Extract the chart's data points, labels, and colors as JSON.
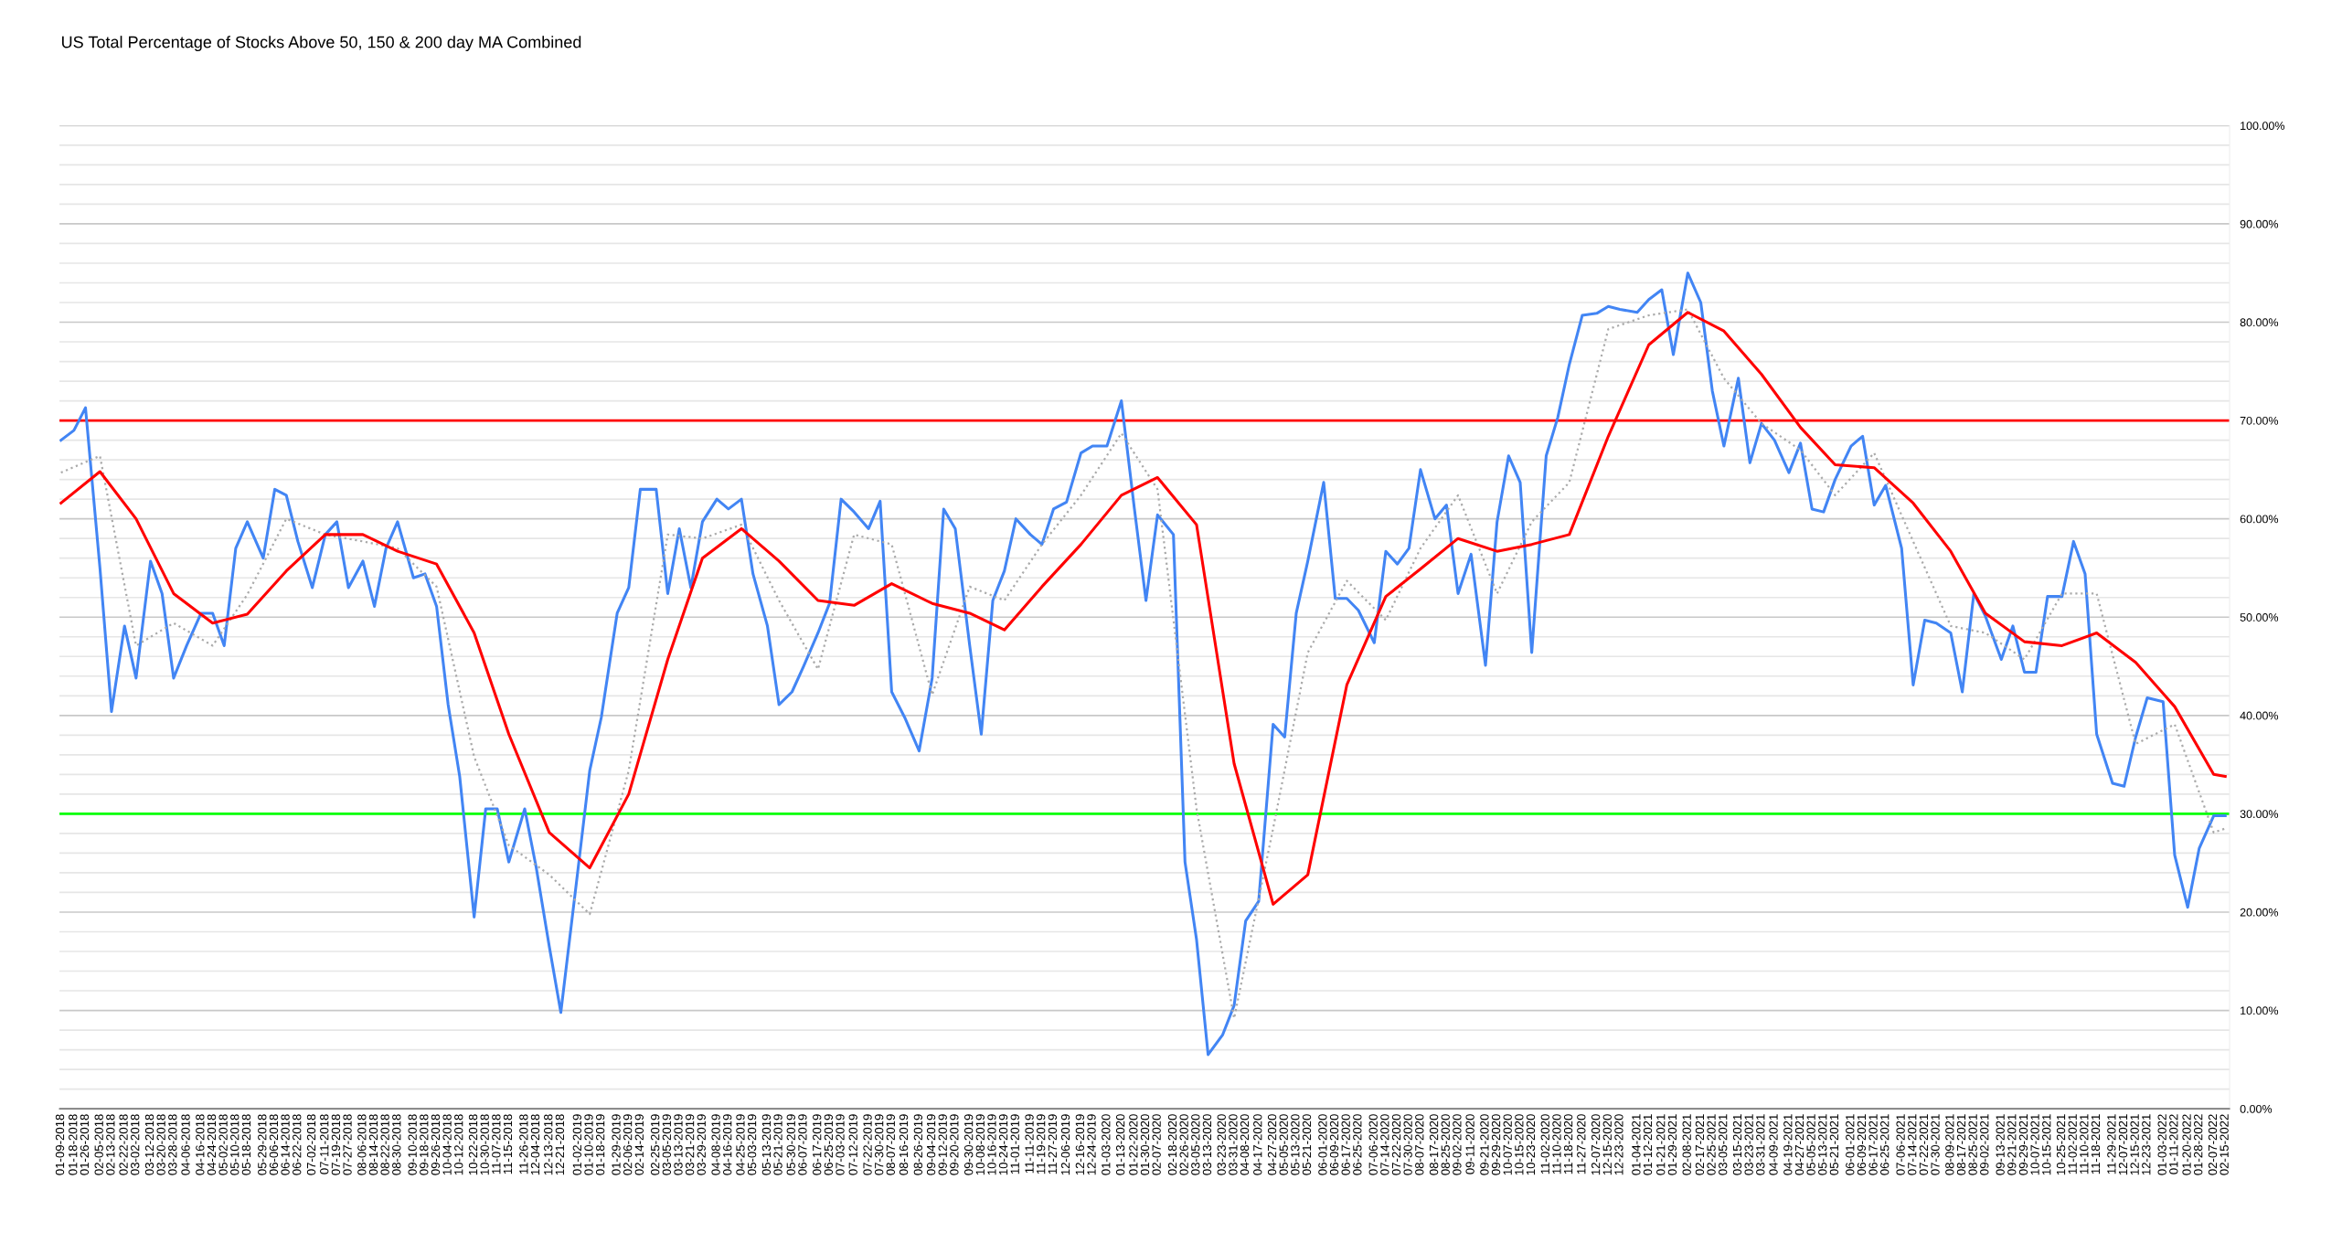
{
  "chart_data": {
    "type": "line",
    "title": "US Total Percentage of Stocks Above 50, 150 & 200 day MA Combined",
    "x": [
      "2018-01-09",
      "2018-01-18",
      "2018-01-26",
      "2018-02-05",
      "2018-02-13",
      "2018-02-22",
      "2018-03-02",
      "2018-03-12",
      "2018-03-20",
      "2018-03-28",
      "2018-04-06",
      "2018-04-16",
      "2018-04-24",
      "2018-05-02",
      "2018-05-10",
      "2018-05-18",
      "2018-05-29",
      "2018-06-06",
      "2018-06-14",
      "2018-06-22",
      "2018-07-02",
      "2018-07-11",
      "2018-07-19",
      "2018-07-27",
      "2018-08-06",
      "2018-08-14",
      "2018-08-22",
      "2018-08-30",
      "2018-09-10",
      "2018-09-18",
      "2018-09-26",
      "2018-10-04",
      "2018-10-12",
      "2018-10-22",
      "2018-10-30",
      "2018-11-07",
      "2018-11-15",
      "2018-11-26",
      "2018-12-04",
      "2018-12-13",
      "2018-12-21",
      "2019-01-02",
      "2019-01-10",
      "2019-01-18",
      "2019-01-29",
      "2019-02-06",
      "2019-02-14",
      "2019-02-25",
      "2019-03-05",
      "2019-03-13",
      "2019-03-21",
      "2019-03-29",
      "2019-04-08",
      "2019-04-16",
      "2019-04-25",
      "2019-05-03",
      "2019-05-13",
      "2019-05-21",
      "2019-05-30",
      "2019-06-07",
      "2019-06-17",
      "2019-06-25",
      "2019-07-03",
      "2019-07-12",
      "2019-07-22",
      "2019-07-30",
      "2019-08-07",
      "2019-08-16",
      "2019-08-26",
      "2019-09-04",
      "2019-09-12",
      "2019-09-20",
      "2019-09-30",
      "2019-10-08",
      "2019-10-16",
      "2019-10-24",
      "2019-11-01",
      "2019-11-11",
      "2019-11-19",
      "2019-11-27",
      "2019-12-06",
      "2019-12-16",
      "2019-12-24",
      "2020-01-03",
      "2020-01-13",
      "2020-01-22",
      "2020-01-30",
      "2020-02-07",
      "2020-02-18",
      "2020-02-26",
      "2020-03-05",
      "2020-03-13",
      "2020-03-23",
      "2020-03-31",
      "2020-04-08",
      "2020-04-17",
      "2020-04-27",
      "2020-05-05",
      "2020-05-13",
      "2020-05-21",
      "2020-06-01",
      "2020-06-09",
      "2020-06-17",
      "2020-06-25",
      "2020-07-06",
      "2020-07-14",
      "2020-07-22",
      "2020-07-30",
      "2020-08-07",
      "2020-08-17",
      "2020-08-25",
      "2020-09-02",
      "2020-09-11",
      "2020-09-21",
      "2020-09-29",
      "2020-10-07",
      "2020-10-15",
      "2020-10-23",
      "2020-11-02",
      "2020-11-10",
      "2020-11-18",
      "2020-11-27",
      "2020-12-07",
      "2020-12-15",
      "2020-12-23",
      "2021-01-04",
      "2021-01-12",
      "2021-01-21",
      "2021-01-29",
      "2021-02-08",
      "2021-02-17",
      "2021-02-25",
      "2021-03-05",
      "2021-03-15",
      "2021-03-23",
      "2021-03-31",
      "2021-04-09",
      "2021-04-19",
      "2021-04-27",
      "2021-05-05",
      "2021-05-13",
      "2021-05-21",
      "2021-06-01",
      "2021-06-09",
      "2021-06-17",
      "2021-06-25",
      "2021-07-06",
      "2021-07-14",
      "2021-07-22",
      "2021-07-30",
      "2021-08-09",
      "2021-08-17",
      "2021-08-25",
      "2021-09-02",
      "2021-09-13",
      "2021-09-21",
      "2021-09-29",
      "2021-10-07",
      "2021-10-15",
      "2021-10-25",
      "2021-11-02",
      "2021-11-10",
      "2021-11-18",
      "2021-11-29",
      "2021-12-07",
      "2021-12-15",
      "2021-12-23",
      "2022-01-03",
      "2022-01-11",
      "2022-01-20",
      "2022-01-28",
      "2022-02-07",
      "2022-02-15"
    ],
    "xlim": [
      "2018-01-08",
      "2022-02-18"
    ],
    "xticks": [
      {
        "value": "2018-01-09",
        "label": "01-09-2018"
      },
      {
        "value": "2018-01-18",
        "label": "01-18-2018"
      },
      {
        "value": "2018-01-26",
        "label": "01-26-2018"
      },
      {
        "value": "2018-02-05",
        "label": "02-05-2018"
      },
      {
        "value": "2018-02-13",
        "label": "02-13-2018"
      },
      {
        "value": "2018-02-22",
        "label": "02-22-2018"
      },
      {
        "value": "2018-03-02",
        "label": "03-02-2018"
      },
      {
        "value": "2018-03-12",
        "label": "03-12-2018"
      },
      {
        "value": "2018-03-20",
        "label": "03-20-2018"
      },
      {
        "value": "2018-03-28",
        "label": "03-28-2018"
      },
      {
        "value": "2018-04-06",
        "label": "04-06-2018"
      },
      {
        "value": "2018-04-16",
        "label": "04-16-2018"
      },
      {
        "value": "2018-04-24",
        "label": "04-24-2018"
      },
      {
        "value": "2018-05-02",
        "label": "05-02-2018"
      },
      {
        "value": "2018-05-10",
        "label": "05-10-2018"
      },
      {
        "value": "2018-05-18",
        "label": "05-18-2018"
      },
      {
        "value": "2018-05-29",
        "label": "05-29-2018"
      },
      {
        "value": "2018-06-06",
        "label": "06-06-2018"
      },
      {
        "value": "2018-06-14",
        "label": "06-14-2018"
      },
      {
        "value": "2018-06-22",
        "label": "06-22-2018"
      },
      {
        "value": "2018-07-02",
        "label": "07-02-2018"
      },
      {
        "value": "2018-07-11",
        "label": "07-11-2018"
      },
      {
        "value": "2018-07-19",
        "label": "07-19-2018"
      },
      {
        "value": "2018-07-27",
        "label": "07-27-2018"
      },
      {
        "value": "2018-08-06",
        "label": "08-06-2018"
      },
      {
        "value": "2018-08-14",
        "label": "08-14-2018"
      },
      {
        "value": "2018-08-22",
        "label": "08-22-2018"
      },
      {
        "value": "2018-08-30",
        "label": "08-30-2018"
      },
      {
        "value": "2018-09-10",
        "label": "09-10-2018"
      },
      {
        "value": "2018-09-18",
        "label": "09-18-2018"
      },
      {
        "value": "2018-09-26",
        "label": "09-26-2018"
      },
      {
        "value": "2018-10-04",
        "label": "10-04-2018"
      },
      {
        "value": "2018-10-12",
        "label": "10-12-2018"
      },
      {
        "value": "2018-10-22",
        "label": "10-22-2018"
      },
      {
        "value": "2018-10-30",
        "label": "10-30-2018"
      },
      {
        "value": "2018-11-07",
        "label": "11-07-2018"
      },
      {
        "value": "2018-11-15",
        "label": "11-15-2018"
      },
      {
        "value": "2018-11-26",
        "label": "11-26-2018"
      },
      {
        "value": "2018-12-04",
        "label": "12-04-2018"
      },
      {
        "value": "2018-12-13",
        "label": "12-13-2018"
      },
      {
        "value": "2018-12-21",
        "label": "12-21-2018"
      },
      {
        "value": "2019-01-02",
        "label": "01-02-2019"
      },
      {
        "value": "2019-01-10",
        "label": "01-10-2019"
      },
      {
        "value": "2019-01-18",
        "label": "01-18-2019"
      },
      {
        "value": "2019-01-29",
        "label": "01-29-2019"
      },
      {
        "value": "2019-02-06",
        "label": "02-06-2019"
      },
      {
        "value": "2019-02-14",
        "label": "02-14-2019"
      },
      {
        "value": "2019-02-25",
        "label": "02-25-2019"
      },
      {
        "value": "2019-03-05",
        "label": "03-05-2019"
      },
      {
        "value": "2019-03-13",
        "label": "03-13-2019"
      },
      {
        "value": "2019-03-21",
        "label": "03-21-2019"
      },
      {
        "value": "2019-03-29",
        "label": "03-29-2019"
      },
      {
        "value": "2019-04-08",
        "label": "04-08-2019"
      },
      {
        "value": "2019-04-16",
        "label": "04-16-2019"
      },
      {
        "value": "2019-04-25",
        "label": "04-25-2019"
      },
      {
        "value": "2019-05-03",
        "label": "05-03-2019"
      },
      {
        "value": "2019-05-13",
        "label": "05-13-2019"
      },
      {
        "value": "2019-05-21",
        "label": "05-21-2019"
      },
      {
        "value": "2019-05-30",
        "label": "05-30-2019"
      },
      {
        "value": "2019-06-07",
        "label": "06-07-2019"
      },
      {
        "value": "2019-06-17",
        "label": "06-17-2019"
      },
      {
        "value": "2019-06-25",
        "label": "06-25-2019"
      },
      {
        "value": "2019-07-03",
        "label": "07-03-2019"
      },
      {
        "value": "2019-07-12",
        "label": "07-12-2019"
      },
      {
        "value": "2019-07-22",
        "label": "07-22-2019"
      },
      {
        "value": "2019-07-30",
        "label": "07-30-2019"
      },
      {
        "value": "2019-08-07",
        "label": "08-07-2019"
      },
      {
        "value": "2019-08-16",
        "label": "08-16-2019"
      },
      {
        "value": "2019-08-26",
        "label": "08-26-2019"
      },
      {
        "value": "2019-09-04",
        "label": "09-04-2019"
      },
      {
        "value": "2019-09-12",
        "label": "09-12-2019"
      },
      {
        "value": "2019-09-20",
        "label": "09-20-2019"
      },
      {
        "value": "2019-09-30",
        "label": "09-30-2019"
      },
      {
        "value": "2019-10-08",
        "label": "10-08-2019"
      },
      {
        "value": "2019-10-16",
        "label": "10-16-2019"
      },
      {
        "value": "2019-10-24",
        "label": "10-24-2019"
      },
      {
        "value": "2019-11-01",
        "label": "11-01-2019"
      },
      {
        "value": "2019-11-11",
        "label": "11-11-2019"
      },
      {
        "value": "2019-11-19",
        "label": "11-19-2019"
      },
      {
        "value": "2019-11-27",
        "label": "11-27-2019"
      },
      {
        "value": "2019-12-06",
        "label": "12-06-2019"
      },
      {
        "value": "2019-12-16",
        "label": "12-16-2019"
      },
      {
        "value": "2019-12-24",
        "label": "12-24-2019"
      },
      {
        "value": "2020-01-03",
        "label": "01-03-2020"
      },
      {
        "value": "2020-01-13",
        "label": "01-13-2020"
      },
      {
        "value": "2020-01-22",
        "label": "01-22-2020"
      },
      {
        "value": "2020-01-30",
        "label": "01-30-2020"
      },
      {
        "value": "2020-02-07",
        "label": "02-07-2020"
      },
      {
        "value": "2020-02-18",
        "label": "02-18-2020"
      },
      {
        "value": "2020-02-26",
        "label": "02-26-2020"
      },
      {
        "value": "2020-03-05",
        "label": "03-05-2020"
      },
      {
        "value": "2020-03-13",
        "label": "03-13-2020"
      },
      {
        "value": "2020-03-23",
        "label": "03-23-2020"
      },
      {
        "value": "2020-03-31",
        "label": "03-31-2020"
      },
      {
        "value": "2020-04-08",
        "label": "04-08-2020"
      },
      {
        "value": "2020-04-17",
        "label": "04-17-2020"
      },
      {
        "value": "2020-04-27",
        "label": "04-27-2020"
      },
      {
        "value": "2020-05-05",
        "label": "05-05-2020"
      },
      {
        "value": "2020-05-13",
        "label": "05-13-2020"
      },
      {
        "value": "2020-05-21",
        "label": "05-21-2020"
      },
      {
        "value": "2020-06-01",
        "label": "06-01-2020"
      },
      {
        "value": "2020-06-09",
        "label": "06-09-2020"
      },
      {
        "value": "2020-06-17",
        "label": "06-17-2020"
      },
      {
        "value": "2020-06-25",
        "label": "06-25-2020"
      },
      {
        "value": "2020-07-06",
        "label": "07-06-2020"
      },
      {
        "value": "2020-07-14",
        "label": "07-14-2020"
      },
      {
        "value": "2020-07-22",
        "label": "07-22-2020"
      },
      {
        "value": "2020-07-30",
        "label": "07-30-2020"
      },
      {
        "value": "2020-08-07",
        "label": "08-07-2020"
      },
      {
        "value": "2020-08-17",
        "label": "08-17-2020"
      },
      {
        "value": "2020-08-25",
        "label": "08-25-2020"
      },
      {
        "value": "2020-09-02",
        "label": "09-02-2020"
      },
      {
        "value": "2020-09-11",
        "label": "09-11-2020"
      },
      {
        "value": "2020-09-21",
        "label": "09-21-2020"
      },
      {
        "value": "2020-09-29",
        "label": "09-29-2020"
      },
      {
        "value": "2020-10-07",
        "label": "10-07-2020"
      },
      {
        "value": "2020-10-15",
        "label": "10-15-2020"
      },
      {
        "value": "2020-10-23",
        "label": "10-23-2020"
      },
      {
        "value": "2020-11-02",
        "label": "11-02-2020"
      },
      {
        "value": "2020-11-10",
        "label": "11-10-2020"
      },
      {
        "value": "2020-11-18",
        "label": "11-18-2020"
      },
      {
        "value": "2020-11-27",
        "label": "11-27-2020"
      },
      {
        "value": "2020-12-07",
        "label": "12-07-2020"
      },
      {
        "value": "2020-12-15",
        "label": "12-15-2020"
      },
      {
        "value": "2020-12-23",
        "label": "12-23-2020"
      },
      {
        "value": "2021-01-04",
        "label": "01-04-2021"
      },
      {
        "value": "2021-01-12",
        "label": "01-12-2021"
      },
      {
        "value": "2021-01-21",
        "label": "01-21-2021"
      },
      {
        "value": "2021-01-29",
        "label": "01-29-2021"
      },
      {
        "value": "2021-02-08",
        "label": "02-08-2021"
      },
      {
        "value": "2021-02-17",
        "label": "02-17-2021"
      },
      {
        "value": "2021-02-25",
        "label": "02-25-2021"
      },
      {
        "value": "2021-03-05",
        "label": "03-05-2021"
      },
      {
        "value": "2021-03-15",
        "label": "03-15-2021"
      },
      {
        "value": "2021-03-23",
        "label": "03-23-2021"
      },
      {
        "value": "2021-03-31",
        "label": "03-31-2021"
      },
      {
        "value": "2021-04-09",
        "label": "04-09-2021"
      },
      {
        "value": "2021-04-19",
        "label": "04-19-2021"
      },
      {
        "value": "2021-04-27",
        "label": "04-27-2021"
      },
      {
        "value": "2021-05-05",
        "label": "05-05-2021"
      },
      {
        "value": "2021-05-13",
        "label": "05-13-2021"
      },
      {
        "value": "2021-05-21",
        "label": "05-21-2021"
      },
      {
        "value": "2021-06-01",
        "label": "06-01-2021"
      },
      {
        "value": "2021-06-09",
        "label": "06-09-2021"
      },
      {
        "value": "2021-06-17",
        "label": "06-17-2021"
      },
      {
        "value": "2021-06-25",
        "label": "06-25-2021"
      },
      {
        "value": "2021-07-06",
        "label": "07-06-2021"
      },
      {
        "value": "2021-07-14",
        "label": "07-14-2021"
      },
      {
        "value": "2021-07-22",
        "label": "07-22-2021"
      },
      {
        "value": "2021-07-30",
        "label": "07-30-2021"
      },
      {
        "value": "2021-08-09",
        "label": "08-09-2021"
      },
      {
        "value": "2021-08-17",
        "label": "08-17-2021"
      },
      {
        "value": "2021-08-25",
        "label": "08-25-2021"
      },
      {
        "value": "2021-09-02",
        "label": "09-02-2021"
      },
      {
        "value": "2021-09-13",
        "label": "09-13-2021"
      },
      {
        "value": "2021-09-21",
        "label": "09-21-2021"
      },
      {
        "value": "2021-09-29",
        "label": "09-29-2021"
      },
      {
        "value": "2021-10-07",
        "label": "10-07-2021"
      },
      {
        "value": "2021-10-15",
        "label": "10-15-2021"
      },
      {
        "value": "2021-10-25",
        "label": "10-25-2021"
      },
      {
        "value": "2021-11-02",
        "label": "11-02-2021"
      },
      {
        "value": "2021-11-10",
        "label": "11-10-2021"
      },
      {
        "value": "2021-11-18",
        "label": "11-18-2021"
      },
      {
        "value": "2021-11-29",
        "label": "11-29-2021"
      },
      {
        "value": "2021-12-07",
        "label": "12-07-2021"
      },
      {
        "value": "2021-12-15",
        "label": "12-15-2021"
      },
      {
        "value": "2021-12-23",
        "label": "12-23-2021"
      },
      {
        "value": "2022-01-03",
        "label": "01-03-2022"
      },
      {
        "value": "2022-01-11",
        "label": "01-11-2022"
      },
      {
        "value": "2022-01-20",
        "label": "01-20-2022"
      },
      {
        "value": "2022-01-28",
        "label": "01-28-2022"
      },
      {
        "value": "2022-02-07",
        "label": "02-07-2022"
      },
      {
        "value": "2022-02-15",
        "label": "02-15-2022"
      }
    ],
    "ylim": [
      0,
      100
    ],
    "yticks": [
      {
        "value": 0,
        "label": "0.00%"
      },
      {
        "value": 2,
        "label": null
      },
      {
        "value": 4,
        "label": null
      },
      {
        "value": 6,
        "label": null
      },
      {
        "value": 8,
        "label": null
      },
      {
        "value": 10,
        "label": "10.00%"
      },
      {
        "value": 12,
        "label": null
      },
      {
        "value": 14,
        "label": null
      },
      {
        "value": 16,
        "label": null
      },
      {
        "value": 18,
        "label": null
      },
      {
        "value": 20,
        "label": "20.00%"
      },
      {
        "value": 22,
        "label": null
      },
      {
        "value": 24,
        "label": null
      },
      {
        "value": 26,
        "label": null
      },
      {
        "value": 28,
        "label": null
      },
      {
        "value": 30,
        "label": "30.00%"
      },
      {
        "value": 32,
        "label": null
      },
      {
        "value": 34,
        "label": null
      },
      {
        "value": 36,
        "label": null
      },
      {
        "value": 38,
        "label": null
      },
      {
        "value": 40,
        "label": "40.00%"
      },
      {
        "value": 42,
        "label": null
      },
      {
        "value": 44,
        "label": null
      },
      {
        "value": 46,
        "label": null
      },
      {
        "value": 48,
        "label": null
      },
      {
        "value": 50,
        "label": "50.00%"
      },
      {
        "value": 52,
        "label": null
      },
      {
        "value": 54,
        "label": null
      },
      {
        "value": 56,
        "label": null
      },
      {
        "value": 58,
        "label": null
      },
      {
        "value": 60,
        "label": "60.00%"
      },
      {
        "value": 62,
        "label": null
      },
      {
        "value": 64,
        "label": null
      },
      {
        "value": 66,
        "label": null
      },
      {
        "value": 68,
        "label": null
      },
      {
        "value": 70,
        "label": "70.00%"
      },
      {
        "value": 72,
        "label": null
      },
      {
        "value": 74,
        "label": null
      },
      {
        "value": 76,
        "label": null
      },
      {
        "value": 78,
        "label": null
      },
      {
        "value": 80,
        "label": "80.00%"
      },
      {
        "value": 82,
        "label": null
      },
      {
        "value": 84,
        "label": null
      },
      {
        "value": 86,
        "label": null
      },
      {
        "value": 88,
        "label": null
      },
      {
        "value": 90,
        "label": "90.00%"
      },
      {
        "value": 92,
        "label": null
      },
      {
        "value": 94,
        "label": null
      },
      {
        "value": 96,
        "label": null
      },
      {
        "value": 98,
        "label": null
      },
      {
        "value": 100,
        "label": "100.00%"
      }
    ],
    "grid": "y",
    "marker": "none",
    "series": [
      {
        "color": "#4285f4",
        "line_style": "solid",
        "values": [
          68.0,
          69.0,
          71.3,
          55,
          40.4,
          49.1,
          43.8,
          55.7,
          52.4,
          43.8,
          47.1,
          50.4,
          50.4,
          47.1,
          57,
          59.7,
          56,
          63,
          62.4,
          57.7,
          53,
          58.4,
          59.7,
          53,
          55.7,
          51.1,
          57,
          59.7,
          54,
          54.4,
          51.1,
          41.1,
          33.8,
          19.5,
          30.5,
          30.5,
          25.1,
          30.5,
          24.5,
          16.5,
          9.8,
          24.5,
          34.4,
          39.8,
          50.4,
          53,
          63,
          63,
          52.4,
          59,
          53,
          59.7,
          62,
          61,
          62,
          54.4,
          49.1,
          41.1,
          42.4,
          45,
          48.4,
          51.4,
          62,
          60.7,
          59,
          61.8,
          42.4,
          39.8,
          36.4,
          43.8,
          61,
          59,
          47.1,
          38.1,
          51.7,
          54.7,
          60,
          58.4,
          57.4,
          61,
          61.7,
          66.7,
          67.4,
          67.4,
          72,
          61,
          51.7,
          60.4,
          58.4,
          25.1,
          17.2,
          5.5,
          7.5,
          10.5,
          19.1,
          21.1,
          39.1,
          37.8,
          50.4,
          55.7,
          63.7,
          51.9,
          51.9,
          50.7,
          47.4,
          56.7,
          55.4,
          57,
          65,
          60,
          61.4,
          52.4,
          56.4,
          45.1,
          59.7,
          66.4,
          63.7,
          46.4,
          66.4,
          70.3,
          75.7,
          80.7,
          80.9,
          81.6,
          81.3,
          81,
          82.3,
          83.3,
          76.7,
          85,
          82,
          73,
          67.4,
          74.3,
          65.7,
          69.7,
          68,
          64.7,
          67.7,
          61,
          60.7,
          64,
          67.4,
          68.4,
          61.4,
          63.4,
          57,
          43.1,
          49.7,
          49.4,
          48.4,
          42.4,
          52.4,
          50.1,
          45.7,
          49.1,
          44.4,
          44.4,
          52.1,
          52.1,
          57.7,
          54.4,
          38.1,
          33.1,
          32.8,
          37.8,
          41.8,
          41.4,
          25.8,
          20.5,
          26.5,
          29.8,
          29.8
        ]
      },
      {
        "color": "#aaaaaa",
        "line_style": "dotted",
        "x": [
          "2018-01-09",
          "2018-02-05",
          "2018-03-02",
          "2018-03-28",
          "2018-04-24",
          "2018-05-18",
          "2018-06-14",
          "2018-07-11",
          "2018-08-06",
          "2018-08-30",
          "2018-09-26",
          "2018-10-22",
          "2018-11-15",
          "2018-12-13",
          "2019-01-10",
          "2019-02-06",
          "2019-03-05",
          "2019-03-29",
          "2019-04-25",
          "2019-05-21",
          "2019-06-17",
          "2019-07-12",
          "2019-08-07",
          "2019-09-04",
          "2019-09-30",
          "2019-10-24",
          "2019-11-19",
          "2019-12-16",
          "2020-01-13",
          "2020-02-07",
          "2020-03-05",
          "2020-03-31",
          "2020-04-27",
          "2020-05-21",
          "2020-06-17",
          "2020-07-14",
          "2020-08-07",
          "2020-09-02",
          "2020-09-29",
          "2020-10-23",
          "2020-11-18",
          "2020-12-15",
          "2021-01-12",
          "2021-02-08",
          "2021-03-05",
          "2021-03-31",
          "2021-04-27",
          "2021-05-21",
          "2021-06-17",
          "2021-07-14",
          "2021-08-09",
          "2021-09-02",
          "2021-09-29",
          "2021-10-25",
          "2021-11-18",
          "2021-12-15",
          "2022-01-11",
          "2022-02-07",
          "2022-02-15"
        ],
        "values": [
          64.7,
          66.4,
          47.1,
          49.4,
          47.1,
          52.3,
          60,
          58.4,
          57.7,
          57,
          53.1,
          35.8,
          26.8,
          23.8,
          19.8,
          34.4,
          58.4,
          58,
          59.4,
          51.7,
          44.7,
          58.4,
          57.4,
          42.1,
          53.1,
          51.7,
          57.4,
          62.4,
          68.7,
          63,
          30.5,
          9.2,
          28.5,
          46.4,
          53.7,
          49.7,
          57,
          62.4,
          52.4,
          59.7,
          63.7,
          79.3,
          80.7,
          81.3,
          74.3,
          69.7,
          67,
          62.4,
          66.7,
          57.7,
          49.1,
          48.4,
          45.7,
          52.4,
          52.4,
          37.1,
          39.1,
          28.1,
          28.5
        ]
      },
      {
        "color": "#ff0000",
        "line_style": "solid",
        "x": [
          "2018-01-09",
          "2018-02-05",
          "2018-03-02",
          "2018-03-28",
          "2018-04-24",
          "2018-05-18",
          "2018-06-14",
          "2018-07-11",
          "2018-08-06",
          "2018-08-30",
          "2018-09-26",
          "2018-10-22",
          "2018-11-15",
          "2018-12-13",
          "2019-01-10",
          "2019-02-06",
          "2019-03-05",
          "2019-03-29",
          "2019-04-25",
          "2019-05-21",
          "2019-06-17",
          "2019-07-12",
          "2019-08-07",
          "2019-09-04",
          "2019-09-30",
          "2019-10-24",
          "2019-11-19",
          "2019-12-16",
          "2020-01-13",
          "2020-02-07",
          "2020-03-05",
          "2020-03-31",
          "2020-04-27",
          "2020-05-21",
          "2020-06-17",
          "2020-07-14",
          "2020-08-07",
          "2020-09-02",
          "2020-09-29",
          "2020-10-23",
          "2020-11-18",
          "2020-12-15",
          "2021-01-12",
          "2021-02-08",
          "2021-03-05",
          "2021-03-31",
          "2021-04-27",
          "2021-05-21",
          "2021-06-17",
          "2021-07-14",
          "2021-08-09",
          "2021-09-02",
          "2021-09-29",
          "2021-10-25",
          "2021-11-18",
          "2021-12-15",
          "2022-01-11",
          "2022-02-07",
          "2022-02-15"
        ],
        "values": [
          61.6,
          64.8,
          60.0,
          52.4,
          49.4,
          50.3,
          54.7,
          58.4,
          58.4,
          56.7,
          55.4,
          48.4,
          38.1,
          28.1,
          24.5,
          32,
          45.7,
          56,
          59,
          55.7,
          51.7,
          51.2,
          53.4,
          51.4,
          50.4,
          48.7,
          53.1,
          57.4,
          62.4,
          64.2,
          59.4,
          35.1,
          20.8,
          23.8,
          43.1,
          52.1,
          54.9,
          58,
          56.7,
          57.4,
          58.4,
          68.4,
          77.7,
          81,
          79.1,
          74.7,
          69.3,
          65.5,
          65.2,
          61.6,
          56.7,
          50.4,
          47.5,
          47.1,
          48.4,
          45.4,
          40.9,
          34.0,
          33.8
        ]
      }
    ],
    "ref_lines": [
      {
        "axis": "y",
        "value": 70,
        "color": "#ff0000"
      },
      {
        "axis": "y",
        "value": 30,
        "color": "#00ff00"
      }
    ]
  }
}
